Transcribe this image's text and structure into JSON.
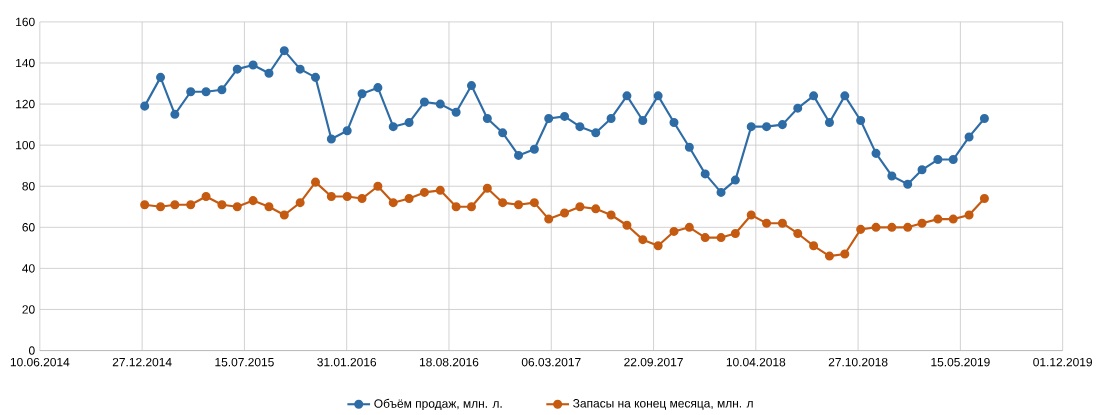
{
  "chart_data": {
    "type": "line",
    "x": [
      "2015-01",
      "2015-02",
      "2015-03",
      "2015-04",
      "2015-05",
      "2015-06",
      "2015-07",
      "2015-08",
      "2015-09",
      "2015-10",
      "2015-11",
      "2015-12",
      "2016-01",
      "2016-02",
      "2016-03",
      "2016-04",
      "2016-05",
      "2016-06",
      "2016-07",
      "2016-08",
      "2016-09",
      "2016-10",
      "2016-11",
      "2016-12",
      "2017-01",
      "2017-02",
      "2017-03",
      "2017-04",
      "2017-05",
      "2017-06",
      "2017-07",
      "2017-08",
      "2017-09",
      "2017-10",
      "2017-11",
      "2017-12",
      "2018-01",
      "2018-02",
      "2018-03",
      "2018-04",
      "2018-05",
      "2018-06",
      "2018-07",
      "2018-08",
      "2018-09",
      "2018-10",
      "2018-11",
      "2018-12",
      "2019-01",
      "2019-02",
      "2019-03",
      "2019-04",
      "2019-05",
      "2019-06",
      "2019-07"
    ],
    "series": [
      {
        "name": "Объём продаж, млн. л.",
        "color": "#2e6ca6",
        "values": [
          119,
          133,
          115,
          126,
          126,
          127,
          137,
          139,
          135,
          146,
          137,
          133,
          103,
          107,
          125,
          128,
          109,
          111,
          121,
          120,
          116,
          129,
          113,
          106,
          95,
          98,
          113,
          114,
          109,
          106,
          113,
          124,
          112,
          124,
          111,
          99,
          86,
          77,
          83,
          109,
          109,
          110,
          118,
          124,
          111,
          124,
          112,
          96,
          85,
          81,
          88,
          93,
          93,
          104,
          113
        ]
      },
      {
        "name": "Запасы на конец месяца, млн. л",
        "color": "#c55a11",
        "values": [
          71,
          70,
          71,
          71,
          75,
          71,
          70,
          73,
          70,
          66,
          72,
          82,
          75,
          75,
          74,
          80,
          72,
          74,
          77,
          78,
          70,
          70,
          79,
          72,
          71,
          72,
          64,
          67,
          70,
          69,
          66,
          61,
          54,
          51,
          58,
          60,
          55,
          55,
          57,
          66,
          62,
          62,
          57,
          51,
          46,
          47,
          59,
          60,
          60,
          60,
          62,
          64,
          64,
          66,
          74
        ]
      }
    ],
    "xlim": [
      "2014-06-10",
      "2019-12-01"
    ],
    "xticks": [
      {
        "value": "2014-06-10",
        "label": "10.06.2014"
      },
      {
        "value": "2014-12-27",
        "label": "27.12.2014"
      },
      {
        "value": "2015-07-15",
        "label": "15.07.2015"
      },
      {
        "value": "2016-01-31",
        "label": "31.01.2016"
      },
      {
        "value": "2016-08-18",
        "label": "18.08.2016"
      },
      {
        "value": "2017-03-06",
        "label": "06.03.2017"
      },
      {
        "value": "2017-09-22",
        "label": "22.09.2017"
      },
      {
        "value": "2018-04-10",
        "label": "10.04.2018"
      },
      {
        "value": "2018-10-27",
        "label": "27.10.2018"
      },
      {
        "value": "2019-05-15",
        "label": "15.05.2019"
      },
      {
        "value": "2019-12-01",
        "label": "01.12.2019"
      }
    ],
    "ylim": [
      0,
      160
    ],
    "yticks": [
      0,
      20,
      40,
      60,
      80,
      100,
      120,
      140,
      160
    ],
    "grid": true,
    "legend": "bottom",
    "marker": "circle",
    "line_style": "solid"
  }
}
